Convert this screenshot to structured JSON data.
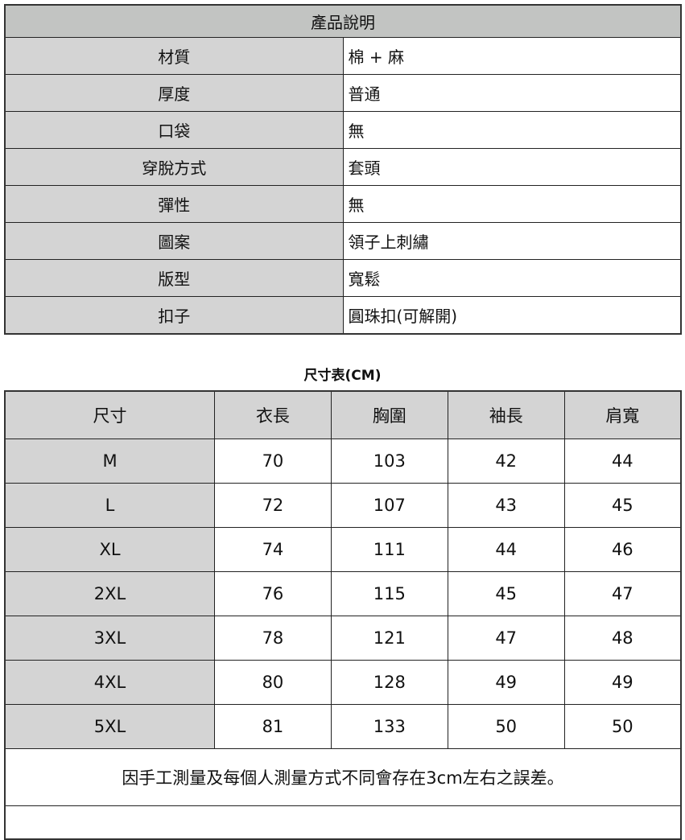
{
  "product": {
    "title": "產品說明",
    "rows": [
      {
        "label": "材質",
        "value": "棉 + 麻"
      },
      {
        "label": "厚度",
        "value": "普通"
      },
      {
        "label": "口袋",
        "value": "無"
      },
      {
        "label": "穿脫方式",
        "value": "套頭"
      },
      {
        "label": "彈性",
        "value": "無"
      },
      {
        "label": "圖案",
        "value": "領子上刺繡"
      },
      {
        "label": "版型",
        "value": "寬鬆"
      },
      {
        "label": "扣子",
        "value": "圓珠扣(可解開)"
      }
    ]
  },
  "size_chart": {
    "title": "尺寸表(CM)",
    "headers": [
      "尺寸",
      "衣長",
      "胸圍",
      "袖長",
      "肩寬"
    ],
    "rows": [
      [
        "M",
        "70",
        "103",
        "42",
        "44"
      ],
      [
        "L",
        "72",
        "107",
        "43",
        "45"
      ],
      [
        "XL",
        "74",
        "111",
        "44",
        "46"
      ],
      [
        "2XL",
        "76",
        "115",
        "45",
        "47"
      ],
      [
        "3XL",
        "78",
        "121",
        "47",
        "48"
      ],
      [
        "4XL",
        "80",
        "128",
        "49",
        "49"
      ],
      [
        "5XL",
        "81",
        "133",
        "50",
        "50"
      ]
    ],
    "note": "因手工測量及每個人測量方式不同會存在3cm左右之誤差。"
  }
}
